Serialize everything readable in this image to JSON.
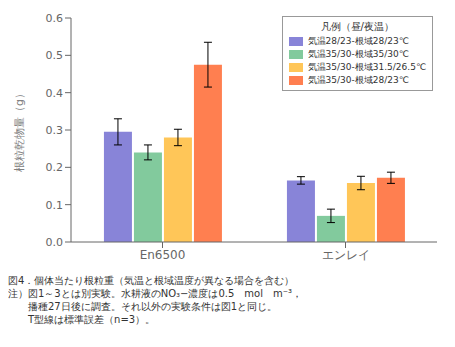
{
  "chart_data": {
    "type": "bar",
    "categories": [
      "En6500",
      "エンレイ"
    ],
    "series": [
      {
        "name": "気温28/23-根域28/23℃",
        "color": "#8884d8",
        "values": [
          0.295,
          0.165
        ],
        "errors": [
          0.035,
          0.01
        ]
      },
      {
        "name": "気温35/30-根域35/30℃",
        "color": "#82ca9d",
        "values": [
          0.24,
          0.07
        ],
        "errors": [
          0.02,
          0.018
        ]
      },
      {
        "name": "気温35/30-根域31.5/26.5℃",
        "color": "#ffc658",
        "values": [
          0.28,
          0.158
        ],
        "errors": [
          0.022,
          0.018
        ]
      },
      {
        "name": "気温35/30-根域28/23℃",
        "color": "#ff7f50",
        "values": [
          0.475,
          0.172
        ],
        "errors": [
          0.06,
          0.015
        ]
      }
    ],
    "ylabel": "根粒乾物量（g）",
    "legend_title": "凡例（昼/夜温）",
    "annotations": [
      "図4．個体当たり根粒重（気温と根域温度が異なる場合を含む）",
      "注）図1～3とは別実験。水耕液のNO₃−濃度は0.5　mol　m⁻³，",
      "　　播種27日後に調査。それ以外の実験条件は図1と同じ。",
      "　　T型線は標準誤差（n=3）。"
    ],
    "ylim": [
      0.0,
      0.6
    ],
    "yticks": [
      {
        "value": 0.0,
        "label": "0.0"
      },
      0.1,
      0.2,
      0.3,
      0.4,
      0.5,
      0.6
    ],
    "legend": "upper right",
    "grid": false
  }
}
